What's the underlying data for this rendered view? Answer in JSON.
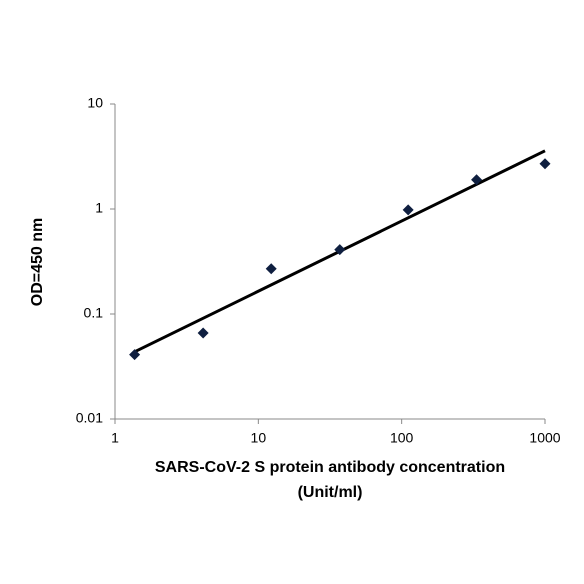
{
  "chart_data": {
    "type": "scatter",
    "ylabel": "OD=450 nm",
    "xlabel": [
      "SARS-CoV-2 S protein antibody concentration",
      "(Unit/ml)"
    ],
    "x": [
      1.37,
      4.12,
      12.3,
      37,
      111,
      333,
      1000
    ],
    "series": [
      {
        "color": "#0f1f40",
        "values": [
          0.041,
          0.066,
          0.27,
          0.41,
          0.98,
          1.9,
          2.7
        ]
      }
    ],
    "xscale": "log",
    "yscale": "log",
    "xlim": [
      1,
      1000
    ],
    "xticks": [
      1,
      10,
      100,
      1000
    ],
    "ylim": [
      0.01,
      10
    ],
    "yticks": [
      0.01,
      0.1,
      1,
      10
    ],
    "trendline": "power",
    "trendline_color": "#000000",
    "grid": false
  }
}
